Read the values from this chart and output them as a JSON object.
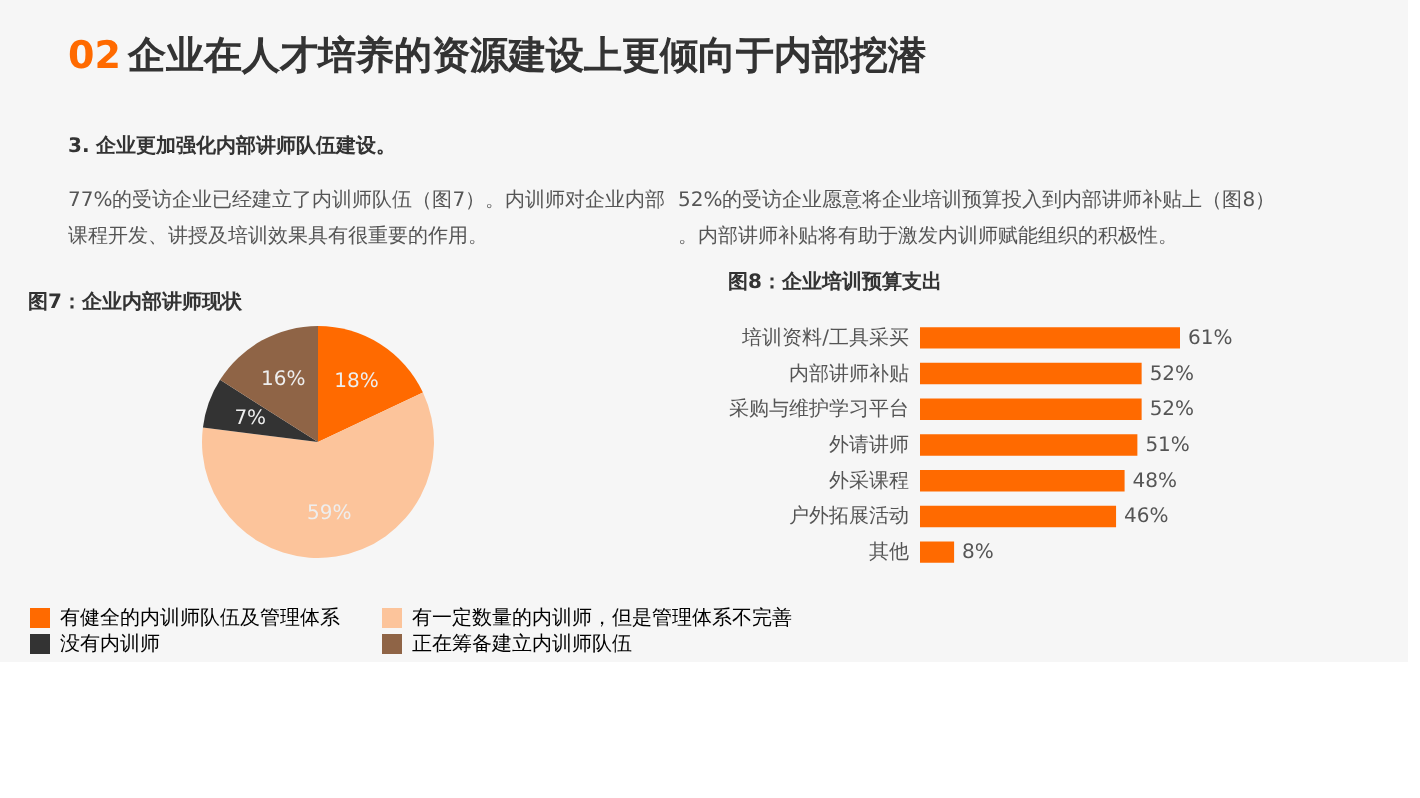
{
  "chart_data": [
    {
      "type": "pie",
      "title": "图7：企业内部讲师现状",
      "annotations": [
        "02 企业在人才培养的资源建设上更倾向于内部挖潜",
        "3. 企业更加强化内部讲师队伍建设。",
        "77%的受访企业已经建立了内训师队伍（图7）。内训师对企业内部课程开发、讲授及培训效果具有很重要的作用。"
      ],
      "categories": [
        "有健全的内训师队伍及管理体系",
        "有一定数量的内训师，但是管理体系不完善",
        "没有内训师",
        "正在筹备建立内训师队伍"
      ],
      "values": [
        18,
        59,
        7,
        16
      ],
      "value_labels": [
        "18%",
        "59%",
        "7%",
        "16%"
      ],
      "colors": [
        "#ff6a00",
        "#fcc49b",
        "#333333",
        "#8f6446"
      ],
      "legend": "bottom"
    },
    {
      "type": "bar",
      "orientation": "horizontal",
      "title": "图8：企业培训预算支出",
      "annotations": [
        "52%的受访企业愿意将企业培训预算投入到内部讲师补贴上（图8）。内部讲师补贴将有助于激发内训师赋能组织的积极性。"
      ],
      "categories": [
        "培训资料/工具采买",
        "内部讲师补贴",
        "采购与维护学习平台",
        "外请讲师",
        "外采课程",
        "户外拓展活动",
        "其他"
      ],
      "values": [
        61,
        52,
        52,
        51,
        48,
        46,
        8
      ],
      "value_labels": [
        "61%",
        "52%",
        "52%",
        "51%",
        "48%",
        "46%",
        "8%"
      ],
      "color": "#ff6a00"
    }
  ]
}
